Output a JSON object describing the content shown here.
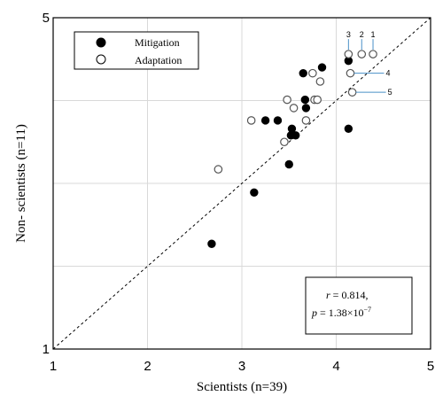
{
  "chart_data": {
    "type": "scatter",
    "xlabel": "Scientists (n=39)",
    "ylabel": "Non- scientists (n=11)",
    "xlim": [
      1,
      5
    ],
    "ylim": [
      1,
      5
    ],
    "x_ticks": [
      "1",
      "2",
      "3",
      "4",
      "5"
    ],
    "y_ticks": [
      "1",
      "5"
    ],
    "grid": true,
    "legend_position": "top-left",
    "reference_line": "y = x (dashed)",
    "series": [
      {
        "name": "Mitigation",
        "marker": "filled-circle",
        "points": [
          [
            2.68,
            2.27
          ],
          [
            3.13,
            2.89
          ],
          [
            3.25,
            3.76
          ],
          [
            3.38,
            3.76
          ],
          [
            3.5,
            3.23
          ],
          [
            3.52,
            3.58
          ],
          [
            3.53,
            3.66
          ],
          [
            3.57,
            3.58
          ],
          [
            3.65,
            4.33
          ],
          [
            3.67,
            4.01
          ],
          [
            3.68,
            3.91
          ],
          [
            3.85,
            4.4
          ],
          [
            4.13,
            4.48
          ],
          [
            4.13,
            3.66
          ]
        ]
      },
      {
        "name": "Adaptation",
        "marker": "open-circle",
        "points": [
          [
            2.75,
            3.17
          ],
          [
            3.1,
            3.76
          ],
          [
            3.45,
            3.5
          ],
          [
            3.48,
            4.01
          ],
          [
            3.55,
            3.91
          ],
          [
            3.68,
            3.76
          ],
          [
            3.75,
            4.33
          ],
          [
            3.77,
            4.01
          ],
          [
            3.8,
            4.01
          ],
          [
            3.83,
            4.23
          ],
          [
            4.13,
            4.56
          ],
          [
            4.15,
            4.33
          ],
          [
            4.17,
            4.1
          ],
          [
            4.27,
            4.56
          ],
          [
            4.39,
            4.56
          ]
        ]
      }
    ],
    "annotations": [
      {
        "label": "3",
        "x": 4.13,
        "y": 4.56,
        "leader": false
      },
      {
        "label": "2",
        "x": 4.27,
        "y": 4.56,
        "leader": false
      },
      {
        "label": "1",
        "x": 4.39,
        "y": 4.56,
        "leader": false
      },
      {
        "label": "4",
        "x": 4.15,
        "y": 4.33,
        "leader": true
      },
      {
        "label": "5",
        "x": 4.17,
        "y": 4.1,
        "leader": true
      }
    ],
    "stats": {
      "r_label": "r",
      "r_value": "= 0.814,",
      "p_label": "p",
      "p_value": "= 1.38×10",
      "p_exponent": "−7"
    }
  }
}
